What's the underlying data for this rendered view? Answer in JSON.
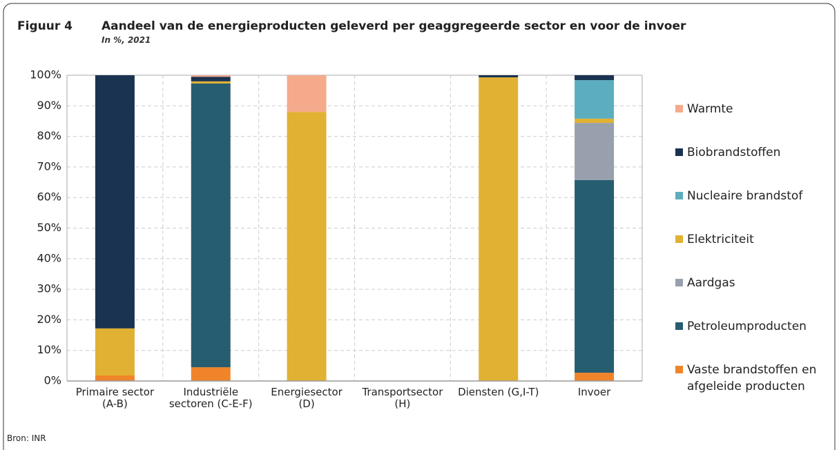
{
  "chart_data": {
    "type": "stacked_bar",
    "figure_label": "Figuur 4",
    "title": "Aandeel van de energieproducten geleverd per geaggregeerde sector en voor de invoer",
    "subtitle": "In %, 2021",
    "source": "Bron: INR",
    "categories": [
      "Primaire sector\n(A-B)",
      "Industriële\nsectoren (C-E-F)",
      "Energiesector\n(D)",
      "Transportsector\n(H)",
      "Diensten (G,I-T)",
      "Invoer"
    ],
    "series": [
      {
        "name": "Vaste brandstoffen en afgeleide producten",
        "color": "#f0842a",
        "values": [
          1.8,
          4.5,
          0,
          0,
          0,
          2.7
        ]
      },
      {
        "name": "Petroleumproducten",
        "color": "#275d70",
        "values": [
          0,
          92.8,
          0,
          0,
          0,
          63
        ]
      },
      {
        "name": "Aardgas",
        "color": "#97a0ac",
        "values": [
          0,
          0,
          0,
          0,
          0,
          18.7
        ]
      },
      {
        "name": "Elektriciteit",
        "color": "#e1b133",
        "values": [
          15.4,
          0.7,
          88,
          0,
          99.3,
          1.4
        ]
      },
      {
        "name": "Nucleaire brandstof",
        "color": "#5caebf",
        "values": [
          0,
          0,
          0,
          0,
          0,
          12.6
        ]
      },
      {
        "name": "Biobrandstoffen",
        "color": "#1a3350",
        "values": [
          82.8,
          1.5,
          0,
          0,
          0.7,
          1.6
        ]
      },
      {
        "name": "Warmte",
        "color": "#f5aa8b",
        "values": [
          0,
          0.5,
          12,
          0,
          0,
          0
        ]
      }
    ],
    "ylim": [
      0,
      100
    ],
    "yticks": [
      {
        "value": 0,
        "label": "0%"
      },
      {
        "value": 10,
        "label": "10%"
      },
      {
        "value": 20,
        "label": "20%"
      },
      {
        "value": 30,
        "label": "30%"
      },
      {
        "value": 40,
        "label": "40%"
      },
      {
        "value": 50,
        "label": "50%"
      },
      {
        "value": 60,
        "label": "60%"
      },
      {
        "value": 70,
        "label": "70%"
      },
      {
        "value": 80,
        "label": "80%"
      },
      {
        "value": 90,
        "label": "90%"
      },
      {
        "value": 100,
        "label": "100%"
      }
    ],
    "grid": true,
    "legend": "right"
  }
}
